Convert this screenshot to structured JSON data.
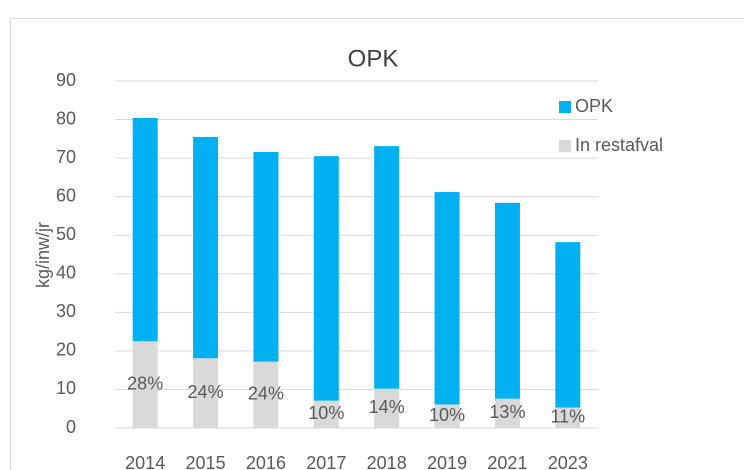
{
  "chart_data": {
    "type": "stacked_bar",
    "title": "OPK",
    "y_label": "kg/inw/jr",
    "categories": [
      "2014",
      "2015",
      "2016",
      "2017",
      "2018",
      "2019",
      "2021",
      "2023"
    ],
    "series": [
      {
        "name": "In restafval",
        "color": "#d9d9d9",
        "values": [
          22.5,
          18.1,
          17.2,
          7.1,
          10.2,
          6.1,
          7.6,
          5.3
        ]
      },
      {
        "name": "OPK",
        "color": "#00b0f0",
        "values": [
          57.9,
          57.4,
          54.4,
          63.4,
          62.9,
          55.1,
          50.8,
          42.9
        ]
      }
    ],
    "share_labels": [
      "28%",
      "24%",
      "24%",
      "10%",
      "14%",
      "10%",
      "13%",
      "11%"
    ],
    "ylim": [
      0,
      90
    ],
    "yticks": [
      0,
      10,
      20,
      30,
      40,
      50,
      60,
      70,
      80,
      90
    ],
    "grid": true,
    "legend": "right"
  }
}
